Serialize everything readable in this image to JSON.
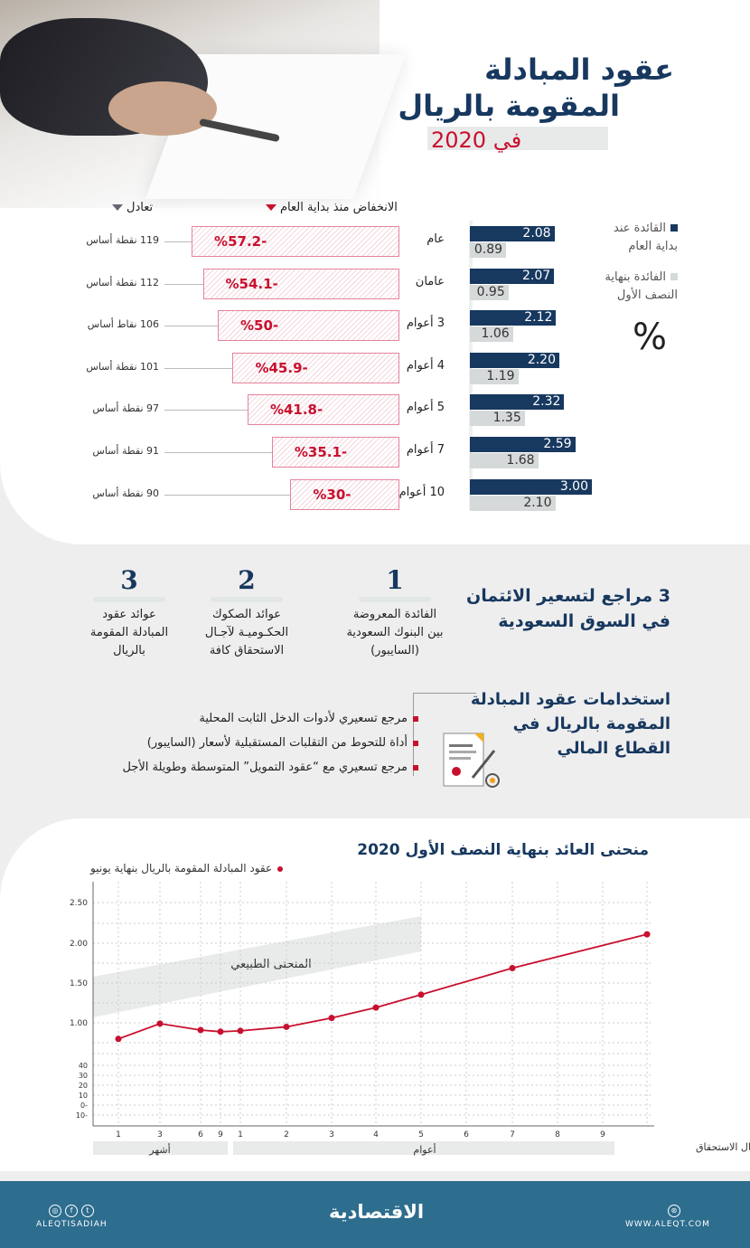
{
  "title": {
    "line1": "عقود المبادلة",
    "line2": "المقومة بالريال",
    "year": "في 2020"
  },
  "bar_section": {
    "header_decline": "الانخفاض منذ بداية العام",
    "header_equivalent": "تعادل",
    "legend": [
      {
        "label_line1": "القائدة عند",
        "label_line2": "بداية العام",
        "color": "#17385f"
      },
      {
        "label_line1": "الفائدة بنهاية",
        "label_line2": "النصف الأول",
        "color": "#d5d9d9"
      }
    ],
    "unit": "%",
    "colors": {
      "decline": "#c8102e"
    }
  },
  "chart_data": [
    {
      "type": "bar",
      "orientation": "horizontal",
      "categories": [
        "عام",
        "عامان",
        "3 أعوام",
        "4 أعوام",
        "5 أعوام",
        "7 أعوام",
        "10 أعوام"
      ],
      "series": [
        {
          "name": "القائدة عند بداية العام",
          "values": [
            2.08,
            2.07,
            2.12,
            2.2,
            2.32,
            2.59,
            3.0
          ],
          "labels": [
            "2.08",
            "2.07",
            "2.12",
            "2.20",
            "2.32",
            "2.59",
            "3.00"
          ]
        },
        {
          "name": "الفائدة بنهاية النصف الأول",
          "values": [
            0.89,
            0.95,
            1.06,
            1.19,
            1.35,
            1.68,
            2.1
          ],
          "labels": [
            "0.89",
            "0.95",
            "1.06",
            "1.19",
            "1.35",
            "1.68",
            "2.10"
          ]
        }
      ],
      "decline_pct": [
        -57.2,
        -54.1,
        -50,
        -45.9,
        -41.8,
        -35.1,
        -30
      ],
      "decline_labels": [
        "%57.2-",
        "%54.1-",
        "%50-",
        "%45.9-",
        "%41.8-",
        "%35.1-",
        "%30-"
      ],
      "basis_points_labels": [
        "119 نقطة أساس",
        "112 نقطة أساس",
        "106 نقاط أساس",
        "101 نقطة أساس",
        "97 نقطة أساس",
        "91 نقطة أساس",
        "90 نقطة أساس"
      ]
    },
    {
      "type": "line",
      "title": "منحنى العائد بنهاية النصف الأول 2020",
      "legend_position": "top-left",
      "series": [
        {
          "name": "عقود المبادلة المقومة بالريال بنهاية يونيو",
          "color": "#c8102e",
          "x": [
            "1 شهر",
            "3 أشهر",
            "6 أشهر",
            "9 أشهر",
            "1 عام",
            "2 عام",
            "3 أعوام",
            "4 أعوام",
            "5 أعوام",
            "7 أعوام",
            "10 أعوام"
          ],
          "values": [
            0.8,
            0.99,
            0.91,
            0.89,
            0.9,
            0.95,
            1.06,
            1.19,
            1.35,
            1.68,
            2.1
          ]
        }
      ],
      "x_tick_labels": [
        "1",
        "3",
        "6",
        "9",
        "1",
        "2",
        "3",
        "4",
        "5",
        "6",
        "7",
        "8",
        "9"
      ],
      "x_groups": [
        "أشهر",
        "أعوام"
      ],
      "xlabel": "آجال الاستحقاق",
      "y_tick_labels": [
        "2.50",
        "2.00",
        "1.50",
        "1.00",
        "40",
        "30",
        "20",
        "10",
        "0-",
        "10-"
      ],
      "ylim": [
        0.7,
        2.7
      ],
      "band_label": "المنحنى الطبيعي",
      "grid": true
    }
  ],
  "references": {
    "title_line1": "3 مراجع لتسعير الائتمان",
    "title_line2": "في السوق السعودية",
    "items": [
      {
        "number": "1",
        "l1": "الفائدة المعروضة",
        "l2": "بين البنوك السعودية",
        "l3": "(السايبور)"
      },
      {
        "number": "2",
        "l1": "عوائد الصكوك",
        "l2": "الحكـوميـة لآجـال",
        "l3": "الاستحقاق كافة"
      },
      {
        "number": "3",
        "l1": "عوائد عقود",
        "l2": "المبادلة المقومة",
        "l3": "بالريال"
      }
    ]
  },
  "uses": {
    "title_line1": "استخدامات عقود المبادلة",
    "title_line2": "المقومة بالريال في",
    "title_line3": "القطاع المالي",
    "items": [
      "مرجع تسعيري لأدوات الدخل الثابت المحلية",
      "أداة للتحوط من التقلبات المستقبلية لأسعار (السايبور)",
      "مرجع تسعيري مع “عقود التمويل” المتوسطة وطويلة الأجل"
    ]
  },
  "footer": {
    "logo": "الاقتصادية",
    "handle": "ALEQTISADIAH",
    "website": "WWW.ALEQT.COM",
    "social_icons": [
      "instagram-icon",
      "facebook-icon",
      "twitter-icon"
    ],
    "web_icon": "globe-icon",
    "bg": "#2d6d8e"
  }
}
